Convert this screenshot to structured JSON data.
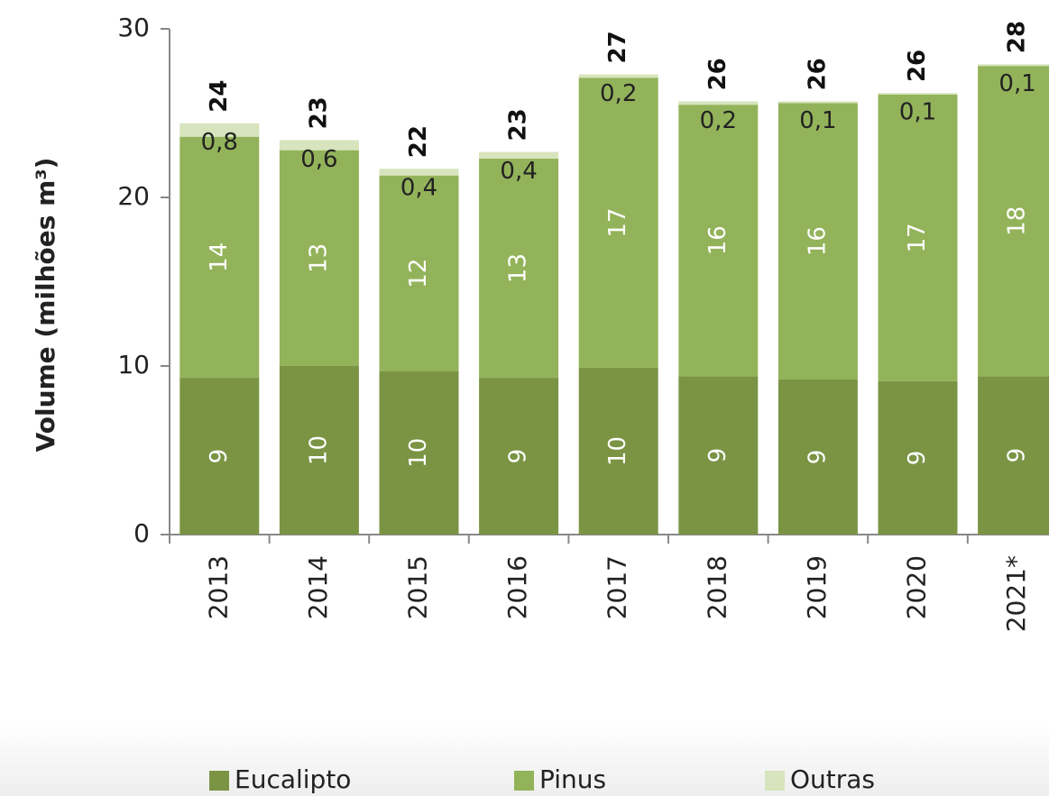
{
  "chart_data": {
    "type": "stacked_bar",
    "y_label": "Volume (milhões m³)",
    "categories": [
      "2013",
      "2014",
      "2015",
      "2016",
      "2017",
      "2018",
      "2019",
      "2020",
      "2021*"
    ],
    "series": [
      {
        "name": "Eucalipto",
        "color": "#7a9444",
        "values": [
          9.3,
          10.0,
          9.7,
          9.3,
          9.9,
          9.4,
          9.2,
          9.1,
          9.4
        ],
        "value_labels": [
          "9",
          "10",
          "10",
          "9",
          "10",
          "9",
          "9",
          "9",
          "9"
        ]
      },
      {
        "name": "Pinus",
        "color": "#93b35a",
        "values": [
          14.3,
          12.8,
          11.6,
          13.0,
          17.2,
          16.1,
          16.4,
          17.0,
          18.4
        ],
        "value_labels": [
          "14",
          "13",
          "12",
          "13",
          "17",
          "16",
          "16",
          "17",
          "18"
        ]
      },
      {
        "name": "Outras",
        "color": "#d7e4bd",
        "values": [
          0.8,
          0.6,
          0.4,
          0.4,
          0.2,
          0.2,
          0.1,
          0.1,
          0.1
        ],
        "value_labels": [
          "0,8",
          "0,6",
          "0,4",
          "0,4",
          "0,2",
          "0,2",
          "0,1",
          "0,1",
          "0,1"
        ]
      }
    ],
    "total_labels": [
      "24",
      "23",
      "22",
      "23",
      "27",
      "26",
      "26",
      "26",
      "28"
    ],
    "ylim": [
      0,
      30
    ],
    "yticks": [
      0,
      10,
      20,
      30
    ],
    "legend": "bottom"
  }
}
